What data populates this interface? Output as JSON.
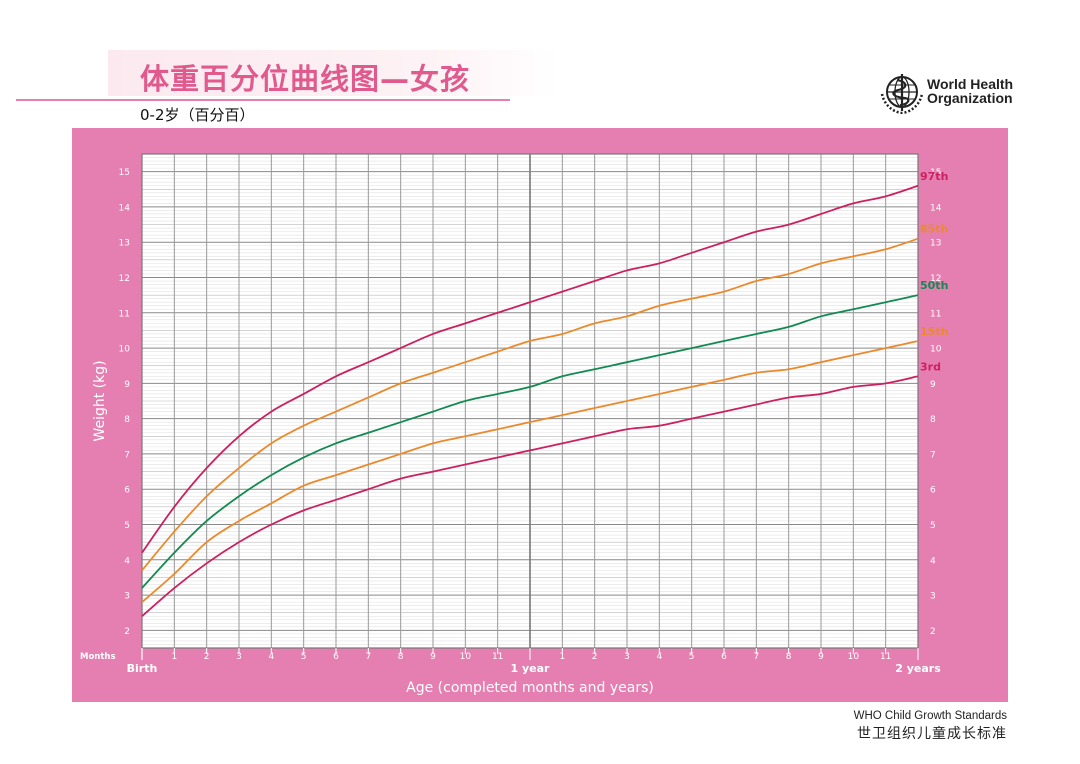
{
  "header": {
    "title": "体重百分位曲线图—女孩",
    "subtitle": "0-2岁（百分百）"
  },
  "logo": {
    "icon": "who-emblem-icon",
    "line1": "World Health",
    "line2": "Organization"
  },
  "footer": {
    "line1": "WHO Child Growth Standards",
    "line2": "世卫组织儿童成长标准"
  },
  "colors": {
    "frame": "#e67fb1",
    "p3": "#cc2060",
    "p15": "#ea8a2c",
    "p50": "#138a52",
    "p85": "#ea8a2c",
    "p97": "#cc2060"
  },
  "chart_data": {
    "type": "line",
    "ylabel": "Weight (kg)",
    "xlabel": "Age (completed months and years)",
    "x_axis_caption": "Months",
    "ylim": [
      1.5,
      15.5
    ],
    "xlim": [
      0,
      24
    ],
    "yticks": [
      2,
      3,
      4,
      5,
      6,
      7,
      8,
      9,
      10,
      11,
      12,
      13,
      14,
      15
    ],
    "xtick_labels": [
      "Birth",
      "1",
      "2",
      "3",
      "4",
      "5",
      "6",
      "7",
      "8",
      "9",
      "10",
      "11",
      "1 year",
      "1",
      "2",
      "3",
      "4",
      "5",
      "6",
      "7",
      "8",
      "9",
      "10",
      "11",
      "2 years"
    ],
    "grid": true,
    "x": [
      0,
      1,
      2,
      3,
      4,
      5,
      6,
      7,
      8,
      9,
      10,
      11,
      12,
      13,
      14,
      15,
      16,
      17,
      18,
      19,
      20,
      21,
      22,
      23,
      24
    ],
    "series": [
      {
        "name": "3rd",
        "color": "#cc2060",
        "values": [
          2.4,
          3.2,
          3.9,
          4.5,
          5.0,
          5.4,
          5.7,
          6.0,
          6.3,
          6.5,
          6.7,
          6.9,
          7.1,
          7.3,
          7.5,
          7.7,
          7.8,
          8.0,
          8.2,
          8.4,
          8.6,
          8.7,
          8.9,
          9.0,
          9.2
        ]
      },
      {
        "name": "15th",
        "color": "#ea8a2c",
        "values": [
          2.8,
          3.6,
          4.5,
          5.1,
          5.6,
          6.1,
          6.4,
          6.7,
          7.0,
          7.3,
          7.5,
          7.7,
          7.9,
          8.1,
          8.3,
          8.5,
          8.7,
          8.9,
          9.1,
          9.3,
          9.4,
          9.6,
          9.8,
          10.0,
          10.2
        ]
      },
      {
        "name": "50th",
        "color": "#138a52",
        "values": [
          3.2,
          4.2,
          5.1,
          5.8,
          6.4,
          6.9,
          7.3,
          7.6,
          7.9,
          8.2,
          8.5,
          8.7,
          8.9,
          9.2,
          9.4,
          9.6,
          9.8,
          10.0,
          10.2,
          10.4,
          10.6,
          10.9,
          11.1,
          11.3,
          11.5
        ]
      },
      {
        "name": "85th",
        "color": "#ea8a2c",
        "values": [
          3.7,
          4.8,
          5.8,
          6.6,
          7.3,
          7.8,
          8.2,
          8.6,
          9.0,
          9.3,
          9.6,
          9.9,
          10.2,
          10.4,
          10.7,
          10.9,
          11.2,
          11.4,
          11.6,
          11.9,
          12.1,
          12.4,
          12.6,
          12.8,
          13.1
        ]
      },
      {
        "name": "97th",
        "color": "#cc2060",
        "values": [
          4.2,
          5.5,
          6.6,
          7.5,
          8.2,
          8.7,
          9.2,
          9.6,
          10.0,
          10.4,
          10.7,
          11.0,
          11.3,
          11.6,
          11.9,
          12.2,
          12.4,
          12.7,
          13.0,
          13.3,
          13.5,
          13.8,
          14.1,
          14.3,
          14.6
        ]
      }
    ]
  }
}
